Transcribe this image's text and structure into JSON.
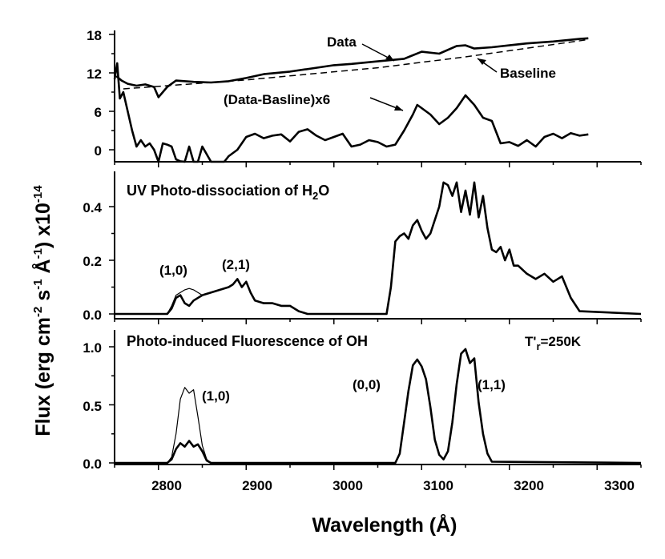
{
  "chart_data": [
    {
      "type": "line",
      "panel": "top",
      "title": "",
      "xlabel": "Wavelength (Å)",
      "ylabel": "Flux (erg cm-2 s-1 Å-1) x10-14",
      "xlim": [
        2750,
        3350
      ],
      "ylim": [
        -2.5,
        19
      ],
      "yticks": [
        "0",
        "6",
        "12",
        "18"
      ],
      "annotations": [
        "Data",
        "Baseline",
        "(Data-Basline)x6"
      ],
      "series": [
        {
          "name": "Data",
          "style": "thick",
          "x": [
            2752,
            2758,
            2765,
            2775,
            2785,
            2795,
            2800,
            2810,
            2820,
            2840,
            2860,
            2880,
            2900,
            2920,
            2950,
            2980,
            3000,
            3020,
            3050,
            3080,
            3100,
            3120,
            3140,
            3150,
            3160,
            3180,
            3200,
            3220,
            3250,
            3280,
            3290
          ],
          "y": [
            11.5,
            10.8,
            10.3,
            10.0,
            10.2,
            9.8,
            8.2,
            9.8,
            10.8,
            10.6,
            10.5,
            10.7,
            11.2,
            11.8,
            12.2,
            12.8,
            13.2,
            13.4,
            13.8,
            14.2,
            15.3,
            15.0,
            16.2,
            16.3,
            15.8,
            16.0,
            16.3,
            16.6,
            16.9,
            17.3,
            17.4
          ]
        },
        {
          "name": "Baseline",
          "style": "dashed",
          "x": [
            2760,
            2900,
            3050,
            3150,
            3290
          ],
          "y": [
            9.5,
            10.9,
            12.8,
            14.5,
            17.2
          ]
        },
        {
          "name": "(Data-Basline)x6",
          "style": "thick",
          "x": [
            2750,
            2753,
            2756,
            2760,
            2765,
            2770,
            2775,
            2780,
            2785,
            2790,
            2795,
            2800,
            2805,
            2810,
            2815,
            2820,
            2825,
            2830,
            2835,
            2840,
            2845,
            2850,
            2860,
            2870,
            2875,
            2880,
            2890,
            2900,
            2910,
            2920,
            2930,
            2940,
            2950,
            2960,
            2970,
            2980,
            2990,
            3000,
            3010,
            3020,
            3030,
            3040,
            3050,
            3060,
            3070,
            3080,
            3090,
            3095,
            3100,
            3110,
            3120,
            3130,
            3140,
            3150,
            3160,
            3170,
            3180,
            3190,
            3200,
            3210,
            3220,
            3230,
            3240,
            3250,
            3260,
            3270,
            3280,
            3290
          ],
          "y": [
            11.0,
            13.5,
            8.0,
            9.0,
            6.0,
            3.0,
            0.5,
            1.5,
            0.5,
            1.0,
            0.0,
            -2.0,
            1.0,
            0.8,
            0.5,
            -1.5,
            -1.8,
            -2.5,
            0.5,
            -2.5,
            -2.5,
            0.5,
            -2.0,
            -2.0,
            -2.5,
            -1.0,
            0.0,
            2.0,
            2.5,
            1.8,
            2.2,
            2.4,
            1.3,
            2.8,
            3.2,
            2.2,
            1.5,
            2.0,
            2.5,
            0.5,
            0.8,
            1.5,
            1.2,
            0.5,
            0.8,
            3.0,
            5.5,
            7.0,
            6.5,
            5.5,
            4.0,
            5.0,
            6.5,
            8.5,
            7.0,
            5.0,
            4.5,
            1.0,
            1.2,
            0.6,
            1.5,
            0.5,
            2.0,
            2.5,
            1.8,
            2.6,
            2.2,
            2.4
          ]
        }
      ]
    },
    {
      "type": "line",
      "panel": "middle",
      "title": "UV Photo-dissociation of H2O",
      "xlim": [
        2750,
        3350
      ],
      "ylim": [
        0,
        0.5
      ],
      "yticks": [
        "0.0",
        "0.2",
        "0.4"
      ],
      "annotations": [
        "(1,0)",
        "(2,1)"
      ],
      "series": [
        {
          "name": "total (thick)",
          "style": "thick",
          "x": [
            2750,
            2810,
            2815,
            2820,
            2825,
            2830,
            2835,
            2840,
            2850,
            2860,
            2870,
            2880,
            2885,
            2890,
            2895,
            2900,
            2905,
            2910,
            2920,
            2930,
            2940,
            2950,
            2960,
            2970,
            3060,
            3065,
            3070,
            3075,
            3080,
            3085,
            3090,
            3095,
            3100,
            3105,
            3110,
            3120,
            3125,
            3130,
            3135,
            3140,
            3145,
            3150,
            3155,
            3160,
            3165,
            3170,
            3175,
            3180,
            3185,
            3190,
            3195,
            3200,
            3205,
            3210,
            3220,
            3230,
            3240,
            3250,
            3260,
            3270,
            3280,
            3350
          ],
          "y": [
            0,
            0,
            0.02,
            0.06,
            0.07,
            0.04,
            0.03,
            0.05,
            0.07,
            0.08,
            0.09,
            0.1,
            0.11,
            0.13,
            0.1,
            0.12,
            0.08,
            0.05,
            0.04,
            0.04,
            0.03,
            0.03,
            0.01,
            0,
            0,
            0.1,
            0.27,
            0.29,
            0.3,
            0.28,
            0.33,
            0.35,
            0.31,
            0.28,
            0.3,
            0.4,
            0.49,
            0.48,
            0.44,
            0.49,
            0.38,
            0.46,
            0.37,
            0.49,
            0.36,
            0.44,
            0.32,
            0.24,
            0.23,
            0.25,
            0.2,
            0.24,
            0.18,
            0.18,
            0.15,
            0.13,
            0.15,
            0.12,
            0.14,
            0.06,
            0.01,
            0
          ]
        },
        {
          "name": "thin",
          "style": "thin",
          "x": [
            2810,
            2815,
            2820,
            2825,
            2830,
            2835,
            2840,
            2850,
            2860
          ],
          "y": [
            0,
            0.03,
            0.07,
            0.08,
            0.09,
            0.095,
            0.09,
            0.07,
            0.08
          ]
        }
      ]
    },
    {
      "type": "line",
      "panel": "bottom",
      "title": "Photo-induced Fluorescence of OH",
      "xlim": [
        2750,
        3350
      ],
      "ylim": [
        0,
        1.1
      ],
      "yticks": [
        "0.0",
        "0.5",
        "1.0"
      ],
      "annotations": [
        "T'r=250K",
        "(1,0)",
        "(0,0)",
        "(1,1)"
      ],
      "series": [
        {
          "name": "thick",
          "style": "thick",
          "x": [
            2750,
            2810,
            2815,
            2820,
            2825,
            2830,
            2835,
            2840,
            2845,
            2850,
            2855,
            2860,
            3070,
            3075,
            3080,
            3085,
            3090,
            3095,
            3100,
            3105,
            3110,
            3115,
            3120,
            3125,
            3130,
            3135,
            3140,
            3145,
            3150,
            3155,
            3160,
            3165,
            3170,
            3175,
            3180,
            3350
          ],
          "y": [
            0,
            0,
            0.03,
            0.12,
            0.17,
            0.14,
            0.19,
            0.14,
            0.16,
            0.1,
            0.02,
            0,
            0,
            0.08,
            0.35,
            0.62,
            0.84,
            0.89,
            0.83,
            0.72,
            0.48,
            0.2,
            0.07,
            0.03,
            0.1,
            0.35,
            0.68,
            0.94,
            0.98,
            0.86,
            0.9,
            0.52,
            0.25,
            0.08,
            0.01,
            0
          ]
        },
        {
          "name": "thin",
          "style": "thin",
          "x": [
            2810,
            2815,
            2820,
            2825,
            2830,
            2835,
            2840,
            2845,
            2850,
            2855,
            2860
          ],
          "y": [
            0,
            0.05,
            0.25,
            0.55,
            0.65,
            0.6,
            0.63,
            0.4,
            0.15,
            0.03,
            0
          ]
        }
      ]
    }
  ],
  "x_axis": {
    "label": "Wavelength (Å)",
    "ticks": [
      "2800",
      "2900",
      "3000",
      "3100",
      "3200",
      "3300"
    ]
  },
  "y_axis_label": {
    "prefix": "Flux (erg cm",
    "sup1": "-2",
    "mid1": " s",
    "sup2": "-1",
    "mid2": " Å",
    "sup3": "-1",
    "mid3": ") x10",
    "sup4": "-14"
  },
  "labels": {
    "data": "Data",
    "baseline": "Baseline",
    "diff": "(Data-Basline)x6",
    "h2o_title_a": "UV Photo-dissociation of H",
    "h2o_title_sub": "2",
    "h2o_title_b": "O",
    "oh_title": "Photo-induced Fluorescence of OH",
    "temp_a": "T'",
    "temp_sub": "r",
    "temp_b": "=250K",
    "mid_10": "(1,0)",
    "mid_21": "(2,1)",
    "bot_10": "(1,0)",
    "bot_00": "(0,0)",
    "bot_11": "(1,1)"
  }
}
